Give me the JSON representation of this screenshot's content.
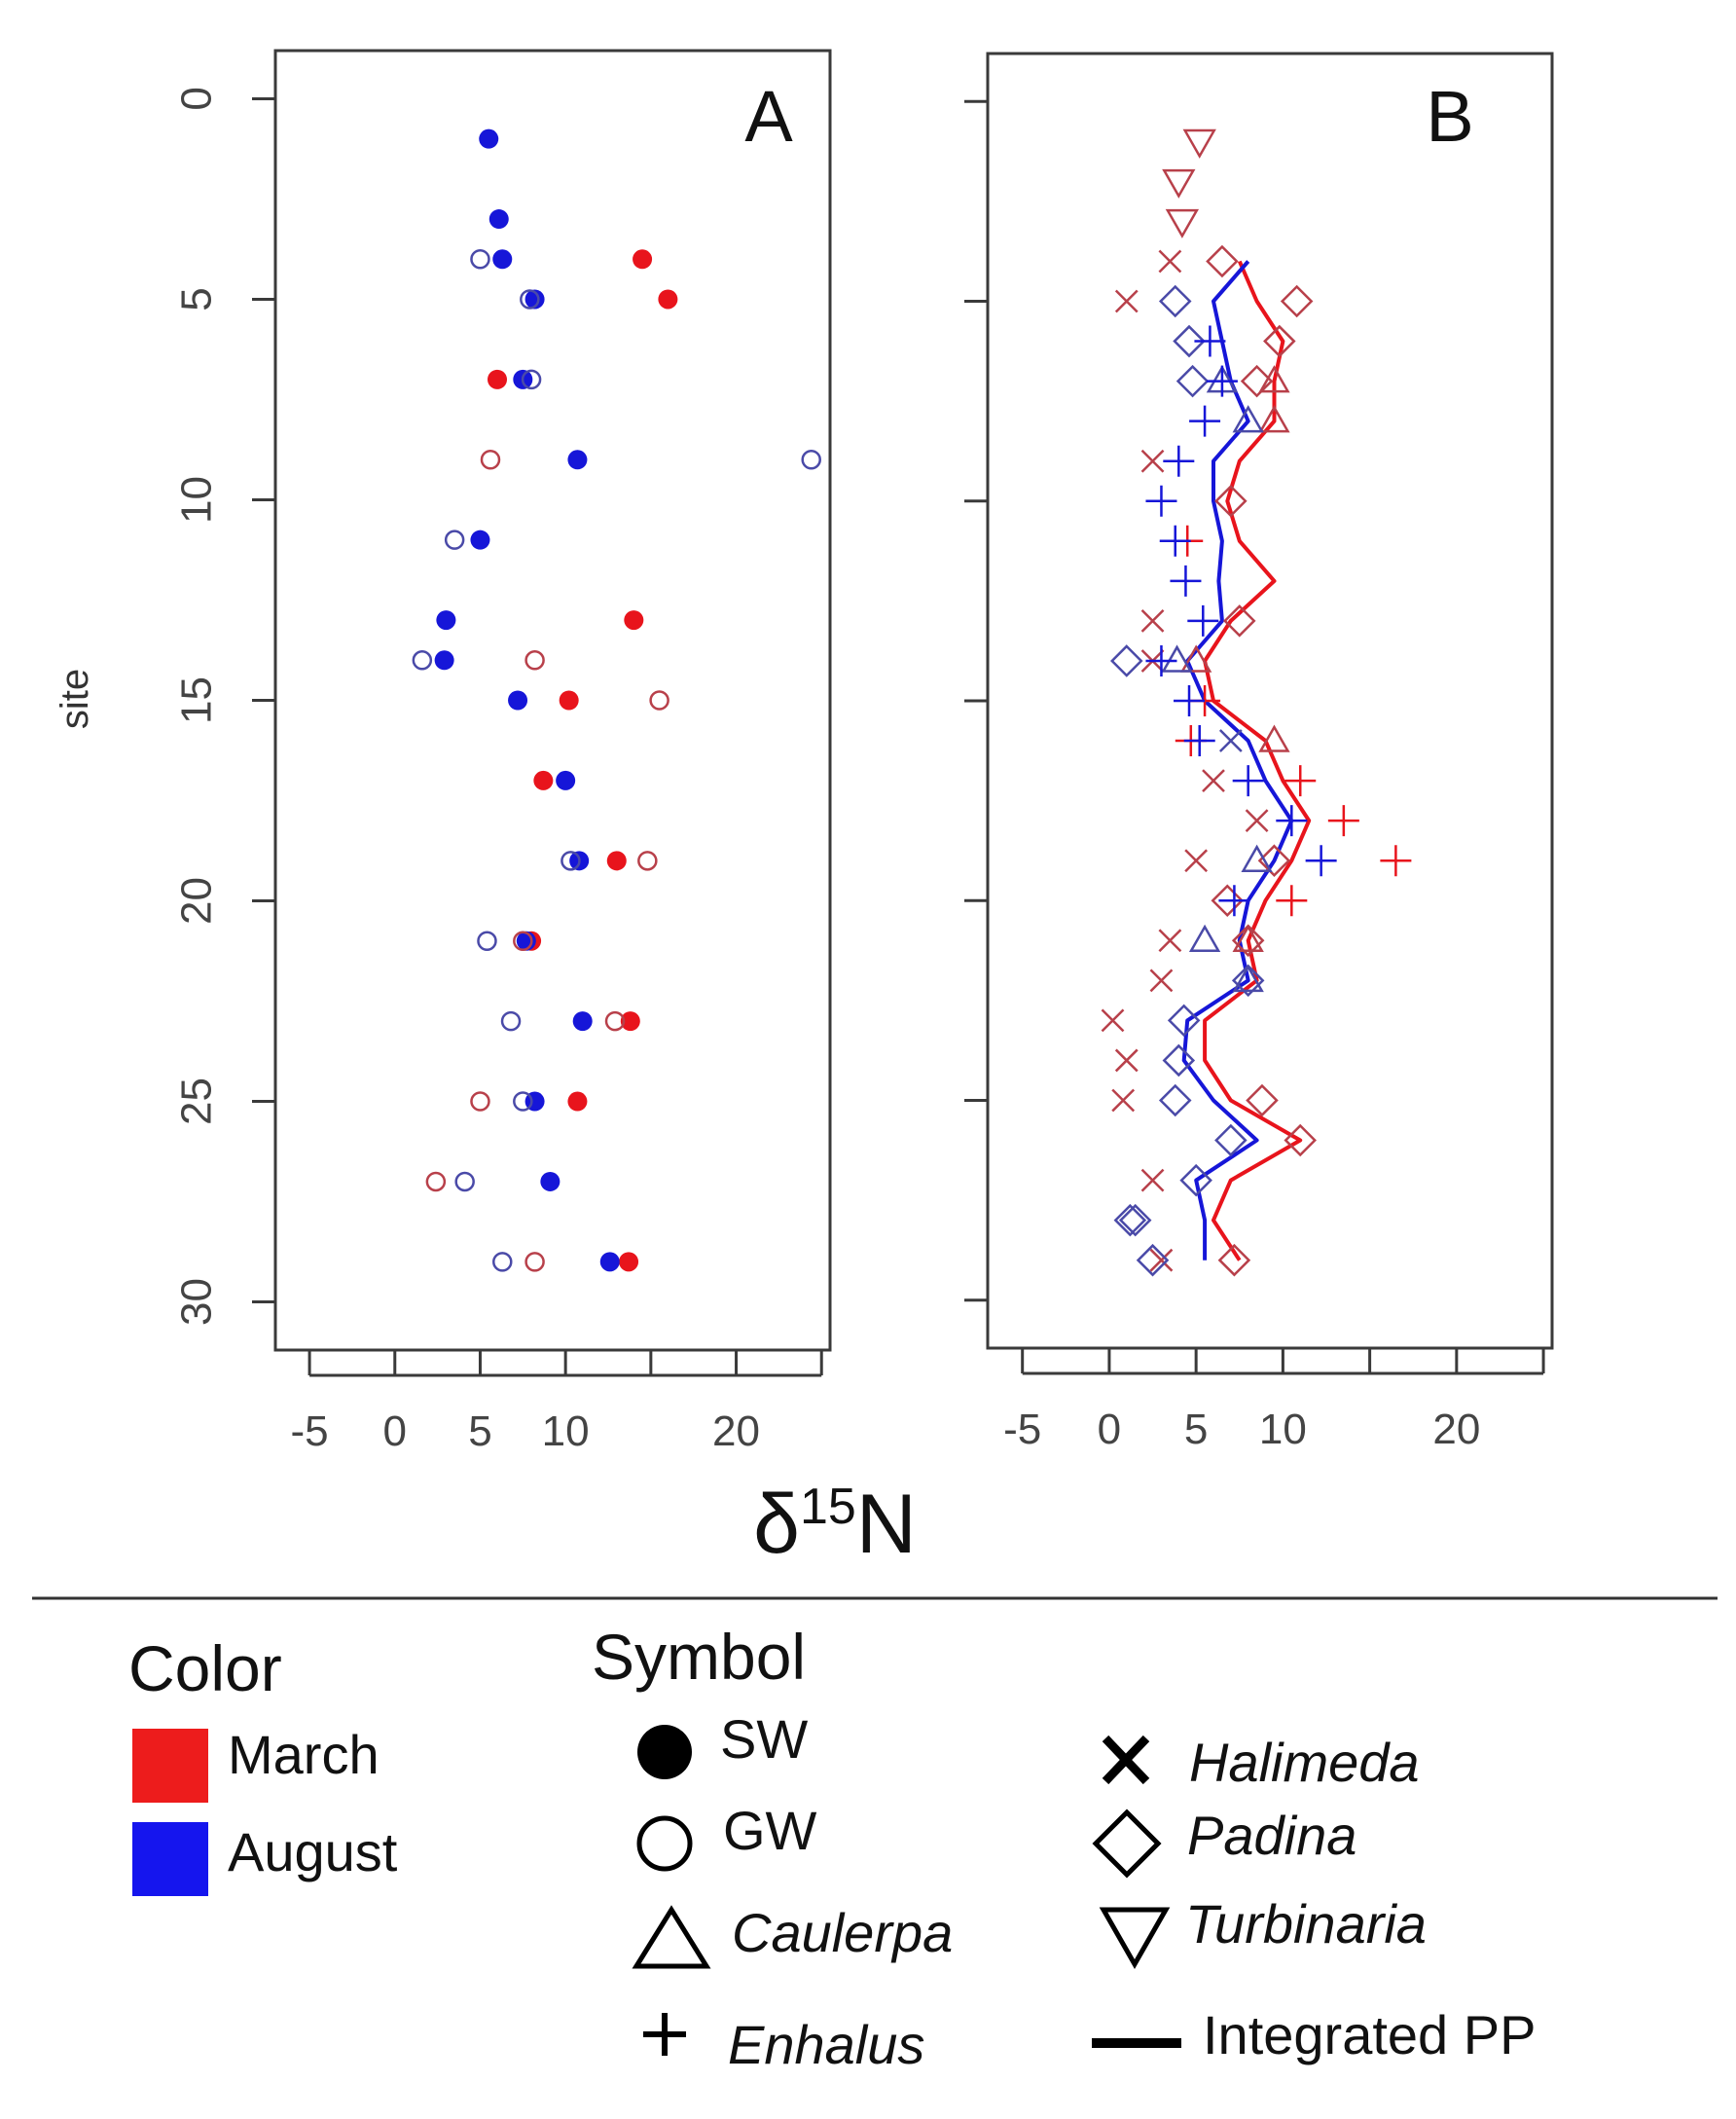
{
  "colors": {
    "march": "#e8141c",
    "august": "#1616d8",
    "march_open": "#b8404a",
    "august_open": "#4a4aa8",
    "axis": "#3a3a3a",
    "text": "#1a1a1a"
  },
  "chart_data": [
    {
      "panel": "A",
      "type": "scatter",
      "title": "A",
      "ylabel": "site",
      "xlabel": "δ15N",
      "x_ticks": [
        -5,
        0,
        5,
        10,
        20
      ],
      "y_ticks": [
        0,
        5,
        10,
        15,
        20,
        25,
        30
      ],
      "xlim": [
        -7,
        25.5
      ],
      "ylim": [
        -1.2,
        31.2
      ],
      "y_reversed": true,
      "series": [
        {
          "name": "SW March",
          "month": "March",
          "symbol": "SW",
          "points": [
            [
              14.5,
              4
            ],
            [
              16,
              5
            ],
            [
              6,
              7
            ],
            [
              10.2,
              15
            ],
            [
              8.7,
              17
            ],
            [
              13,
              19
            ],
            [
              8,
              21
            ],
            [
              13.8,
              23
            ],
            [
              10.7,
              25
            ],
            [
              13.7,
              29
            ],
            [
              14,
              13
            ]
          ]
        },
        {
          "name": "SW August",
          "month": "August",
          "symbol": "SW",
          "points": [
            [
              5.5,
              1
            ],
            [
              6.1,
              3
            ],
            [
              6.3,
              4
            ],
            [
              8.2,
              5
            ],
            [
              7.5,
              7
            ],
            [
              10.7,
              9
            ],
            [
              5,
              11
            ],
            [
              3,
              13
            ],
            [
              2.9,
              14
            ],
            [
              7.2,
              15
            ],
            [
              10,
              17
            ],
            [
              10.8,
              19
            ],
            [
              7.7,
              21
            ],
            [
              11,
              23
            ],
            [
              8.2,
              25
            ],
            [
              9.1,
              27
            ],
            [
              12.6,
              29
            ]
          ]
        },
        {
          "name": "GW March",
          "month": "March",
          "symbol": "GW",
          "points": [
            [
              5.6,
              9
            ],
            [
              8.2,
              14
            ],
            [
              15.5,
              15
            ],
            [
              14.8,
              19
            ],
            [
              7.5,
              21
            ],
            [
              12.9,
              23
            ],
            [
              5,
              25
            ],
            [
              2.4,
              27
            ],
            [
              8.2,
              29
            ]
          ]
        },
        {
          "name": "GW August",
          "month": "August",
          "symbol": "GW",
          "points": [
            [
              5,
              4
            ],
            [
              7.9,
              5
            ],
            [
              8,
              7
            ],
            [
              24.4,
              9
            ],
            [
              3.5,
              11
            ],
            [
              1.6,
              14
            ],
            [
              10.3,
              19
            ],
            [
              5.4,
              21
            ],
            [
              6.8,
              23
            ],
            [
              7.5,
              25
            ],
            [
              4.1,
              27
            ],
            [
              6.3,
              29
            ]
          ]
        }
      ]
    },
    {
      "panel": "B",
      "type": "scatter",
      "title": "B",
      "x_ticks": [
        -5,
        0,
        5,
        10,
        20
      ],
      "xlim": [
        -7,
        25.5
      ],
      "ylim": [
        -1.2,
        31.2
      ],
      "y_reversed": true,
      "series": [
        {
          "name": "Turbinaria March",
          "month": "March",
          "symbol": "Turbinaria",
          "points": [
            [
              5.2,
              1
            ],
            [
              4,
              2
            ],
            [
              4.2,
              3
            ]
          ]
        },
        {
          "name": "Halimeda March",
          "month": "March",
          "symbol": "Halimeda",
          "points": [
            [
              3.5,
              4
            ],
            [
              1,
              5
            ],
            [
              2.5,
              9
            ],
            [
              2.5,
              13
            ],
            [
              2.5,
              14
            ],
            [
              6,
              17
            ],
            [
              8.5,
              18
            ],
            [
              5,
              19
            ],
            [
              3.5,
              21
            ],
            [
              3,
              22
            ],
            [
              0.2,
              23
            ],
            [
              1,
              24
            ],
            [
              0.8,
              25
            ],
            [
              2.5,
              27
            ],
            [
              3,
              29
            ]
          ]
        },
        {
          "name": "Halimeda August",
          "month": "August",
          "symbol": "Halimeda",
          "points": [
            [
              7,
              16
            ]
          ]
        },
        {
          "name": "Padina March",
          "month": "March",
          "symbol": "Padina",
          "points": [
            [
              6.5,
              4
            ],
            [
              10.8,
              5
            ],
            [
              9.8,
              6
            ],
            [
              8.5,
              7
            ],
            [
              7,
              10
            ],
            [
              7.5,
              13
            ],
            [
              9.5,
              19
            ],
            [
              6.8,
              20
            ],
            [
              8.8,
              25
            ],
            [
              11,
              26
            ],
            [
              7.2,
              29
            ],
            [
              8,
              21
            ]
          ]
        },
        {
          "name": "Padina August",
          "month": "August",
          "symbol": "Padina",
          "points": [
            [
              3.8,
              5
            ],
            [
              4.6,
              6
            ],
            [
              4.8,
              7
            ],
            [
              1,
              14
            ],
            [
              4.3,
              23
            ],
            [
              4,
              24
            ],
            [
              3.8,
              25
            ],
            [
              7,
              26
            ],
            [
              5,
              27
            ],
            [
              1.5,
              28
            ],
            [
              1.2,
              28
            ],
            [
              2.5,
              29
            ],
            [
              8,
              22
            ]
          ]
        },
        {
          "name": "Caulerpa March",
          "month": "March",
          "symbol": "Caulerpa",
          "points": [
            [
              9.5,
              7
            ],
            [
              9.5,
              8
            ],
            [
              5,
              14
            ],
            [
              9.5,
              16
            ],
            [
              8,
              21
            ]
          ]
        },
        {
          "name": "Caulerpa August",
          "month": "August",
          "symbol": "Caulerpa",
          "points": [
            [
              6.5,
              7
            ],
            [
              8,
              8
            ],
            [
              3.9,
              14
            ],
            [
              8.5,
              19
            ],
            [
              5.5,
              21
            ],
            [
              8,
              22
            ]
          ]
        },
        {
          "name": "Enhalus March",
          "month": "March",
          "symbol": "Enhalus",
          "points": [
            [
              4.5,
              11
            ],
            [
              5.5,
              15
            ],
            [
              11,
              17
            ],
            [
              13.5,
              18
            ],
            [
              16.5,
              19
            ],
            [
              10.5,
              20
            ],
            [
              4.7,
              16
            ]
          ]
        },
        {
          "name": "Enhalus August",
          "month": "August",
          "symbol": "Enhalus",
          "points": [
            [
              5.8,
              6
            ],
            [
              6.5,
              7
            ],
            [
              5.5,
              8
            ],
            [
              4,
              9
            ],
            [
              3,
              10
            ],
            [
              3.8,
              11
            ],
            [
              4.4,
              12
            ],
            [
              5.4,
              13
            ],
            [
              3,
              14
            ],
            [
              4.6,
              15
            ],
            [
              5.2,
              16
            ],
            [
              8,
              17
            ],
            [
              10.5,
              18
            ],
            [
              12.2,
              19
            ],
            [
              7.2,
              20
            ]
          ]
        },
        {
          "name": "Integrated PP March",
          "month": "March",
          "symbol": "Integrated PP",
          "type": "line",
          "points": [
            [
              7.5,
              4
            ],
            [
              8.5,
              5
            ],
            [
              10,
              6
            ],
            [
              9.5,
              7
            ],
            [
              9.5,
              8
            ],
            [
              7.5,
              9
            ],
            [
              6.8,
              10
            ],
            [
              7.5,
              11
            ],
            [
              9.5,
              12
            ],
            [
              7,
              13
            ],
            [
              5.5,
              14
            ],
            [
              6,
              15
            ],
            [
              9,
              16
            ],
            [
              10,
              17
            ],
            [
              11.5,
              18
            ],
            [
              10.5,
              19
            ],
            [
              9,
              20
            ],
            [
              8,
              21
            ],
            [
              8.5,
              22
            ],
            [
              5.5,
              23
            ],
            [
              5.5,
              24
            ],
            [
              7,
              25
            ],
            [
              11,
              26
            ],
            [
              7,
              27
            ],
            [
              6,
              28
            ],
            [
              7.5,
              29
            ]
          ]
        },
        {
          "name": "Integrated PP August",
          "month": "August",
          "symbol": "Integrated PP",
          "type": "line",
          "points": [
            [
              8,
              4
            ],
            [
              6,
              5
            ],
            [
              6.5,
              6
            ],
            [
              7,
              7
            ],
            [
              8,
              8
            ],
            [
              6,
              9
            ],
            [
              6,
              10
            ],
            [
              6.5,
              11
            ],
            [
              6.3,
              12
            ],
            [
              6.5,
              13
            ],
            [
              4.5,
              14
            ],
            [
              5.5,
              15
            ],
            [
              8,
              16
            ],
            [
              9,
              17
            ],
            [
              10.5,
              18
            ],
            [
              9.5,
              19
            ],
            [
              8,
              20
            ],
            [
              7.5,
              21
            ],
            [
              8,
              22
            ],
            [
              4.5,
              23
            ],
            [
              4.3,
              24
            ],
            [
              6,
              25
            ],
            [
              8.5,
              26
            ],
            [
              5,
              27
            ],
            [
              5.5,
              28
            ],
            [
              5.5,
              29
            ]
          ]
        }
      ]
    }
  ],
  "x_axis_title": {
    "base": "δ",
    "sup": "15",
    "rest": "N"
  },
  "legend": {
    "color_title": "Color",
    "colors": [
      {
        "label": "March",
        "color": "#ed1c1c"
      },
      {
        "label": "August",
        "color": "#1515ee"
      }
    ],
    "symbol_title": "Symbol",
    "symbols": [
      {
        "key": "SW",
        "label": "SW",
        "italic": false
      },
      {
        "key": "GW",
        "label": "GW",
        "italic": false
      },
      {
        "key": "Caulerpa",
        "label": "Caulerpa",
        "italic": true
      },
      {
        "key": "Enhalus",
        "label": "Enhalus",
        "italic": true
      },
      {
        "key": "Halimeda",
        "label": "Halimeda",
        "italic": true
      },
      {
        "key": "Padina",
        "label": "Padina",
        "italic": true
      },
      {
        "key": "Turbinaria",
        "label": "Turbinaria",
        "italic": true
      },
      {
        "key": "Integrated PP",
        "label": "Integrated PP",
        "italic": false
      }
    ]
  }
}
